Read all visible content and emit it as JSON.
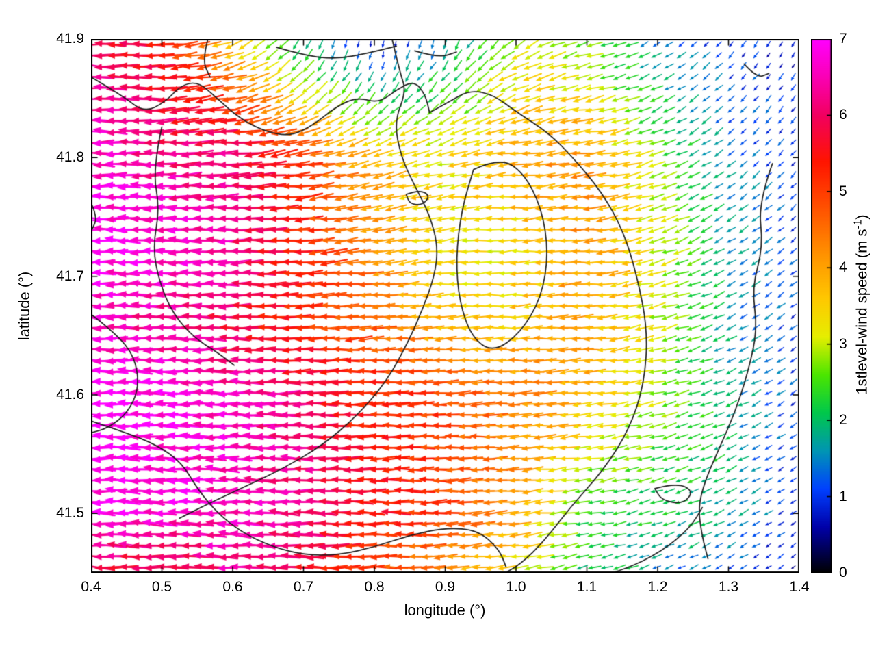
{
  "chart_data": {
    "type": "quiver",
    "title": "",
    "xlabel": "longitude (°)",
    "ylabel": "latitude (°)",
    "xlim": [
      0.4,
      1.4
    ],
    "ylim": [
      41.45,
      41.9
    ],
    "xticks": [
      0.4,
      0.5,
      0.6,
      0.7,
      0.8,
      0.9,
      1.0,
      1.1,
      1.2,
      1.3,
      1.4
    ],
    "xtick_labels": [
      "0.4",
      "0.5",
      "0.6",
      "0.7",
      "0.8",
      "0.9",
      "1.0",
      "1.1",
      "1.2",
      "1.3",
      "1.4"
    ],
    "yticks": [
      41.5,
      41.6,
      41.7,
      41.8,
      41.9
    ],
    "ytick_labels": [
      "41.5",
      "41.6",
      "41.7",
      "41.8",
      "41.9"
    ],
    "grid_on": false,
    "colorbar": {
      "label_main": "1stlevel-wind speed (m s",
      "label_sup": "-1",
      "label_close": ")",
      "min": 0,
      "max": 7,
      "ticks": [
        0,
        1,
        2,
        3,
        4,
        5,
        6,
        7
      ],
      "tick_labels": [
        "0",
        "1",
        "2",
        "3",
        "4",
        "5",
        "6",
        "7"
      ],
      "color_stops": [
        [
          0.0,
          "#000000"
        ],
        [
          0.6,
          "#0000a8"
        ],
        [
          1.1,
          "#0040ff"
        ],
        [
          1.6,
          "#0095b4"
        ],
        [
          2.1,
          "#00c84b"
        ],
        [
          2.6,
          "#4ce600"
        ],
        [
          3.1,
          "#e6ee00"
        ],
        [
          3.6,
          "#ffc800"
        ],
        [
          4.2,
          "#ff9000"
        ],
        [
          4.8,
          "#ff5000"
        ],
        [
          5.4,
          "#ff1400"
        ],
        [
          6.0,
          "#f2005f"
        ],
        [
          6.5,
          "#fa00b4"
        ],
        [
          7.0,
          "#ff00ff"
        ]
      ]
    },
    "wind_grid": {
      "lon": [
        0.4,
        0.5,
        0.6,
        0.7,
        0.8,
        0.9,
        1.0,
        1.1,
        1.2,
        1.3,
        1.4
      ],
      "lat": [
        41.9,
        41.8,
        41.72,
        41.66,
        41.6,
        41.5,
        41.44
      ],
      "speed_ms": [
        [
          6.0,
          5.6,
          3.5,
          1.8,
          0.7,
          1.5,
          3.0,
          2.6,
          1.4,
          1.0,
          0.8
        ],
        [
          6.8,
          6.2,
          6.3,
          5.0,
          3.8,
          3.3,
          3.9,
          4.2,
          2.8,
          1.5,
          1.0
        ],
        [
          7.0,
          6.8,
          6.4,
          5.4,
          4.3,
          3.2,
          3.3,
          4.1,
          3.2,
          1.8,
          1.1
        ],
        [
          6.6,
          6.3,
          5.9,
          5.2,
          4.7,
          3.7,
          3.6,
          4.0,
          3.0,
          1.7,
          1.0
        ],
        [
          7.0,
          6.9,
          6.6,
          6.1,
          5.3,
          5.0,
          4.4,
          3.9,
          2.9,
          1.9,
          1.0
        ],
        [
          6.9,
          6.8,
          6.6,
          6.3,
          5.6,
          5.0,
          4.1,
          2.3,
          2.1,
          1.9,
          0.8
        ],
        [
          5.6,
          5.4,
          6.2,
          5.6,
          4.7,
          4.1,
          3.1,
          2.1,
          1.5,
          1.0,
          0.6
        ]
      ],
      "direction_deg": [
        [
          178,
          182,
          200,
          240,
          265,
          250,
          215,
          195,
          210,
          230,
          240
        ],
        [
          180,
          181,
          183,
          188,
          195,
          192,
          188,
          186,
          200,
          215,
          230
        ],
        [
          179,
          180,
          181,
          184,
          188,
          186,
          182,
          183,
          195,
          210,
          222
        ],
        [
          180,
          180,
          180,
          182,
          184,
          183,
          182,
          184,
          192,
          206,
          218
        ],
        [
          180,
          179,
          179,
          180,
          181,
          181,
          183,
          186,
          192,
          203,
          214
        ],
        [
          179,
          179,
          178,
          179,
          180,
          182,
          186,
          190,
          196,
          206,
          215
        ],
        [
          178,
          178,
          177,
          179,
          182,
          185,
          190,
          196,
          202,
          210,
          216
        ]
      ]
    },
    "arrow_grid": {
      "cols": 57,
      "rows": 49
    },
    "contours_lonlat": [
      [
        [
          0.4,
          41.868
        ],
        [
          0.445,
          41.852
        ],
        [
          0.475,
          41.838
        ],
        [
          0.505,
          41.847
        ],
        [
          0.527,
          41.861
        ],
        [
          0.551,
          41.864
        ],
        [
          0.576,
          41.851
        ],
        [
          0.61,
          41.833
        ],
        [
          0.646,
          41.822
        ],
        [
          0.682,
          41.818
        ],
        [
          0.715,
          41.828
        ],
        [
          0.746,
          41.843
        ],
        [
          0.776,
          41.851
        ],
        [
          0.806,
          41.846
        ],
        [
          0.831,
          41.857
        ],
        [
          0.856,
          41.865
        ],
        [
          0.872,
          41.853
        ],
        [
          0.878,
          41.838
        ]
      ],
      [
        [
          0.878,
          41.838
        ],
        [
          0.905,
          41.847
        ],
        [
          0.935,
          41.857
        ],
        [
          0.968,
          41.853
        ],
        [
          1.002,
          41.838
        ],
        [
          1.046,
          41.821
        ],
        [
          1.082,
          41.799
        ],
        [
          1.121,
          41.771
        ],
        [
          1.151,
          41.739
        ],
        [
          1.171,
          41.7
        ],
        [
          1.186,
          41.654
        ],
        [
          1.181,
          41.609
        ],
        [
          1.16,
          41.571
        ],
        [
          1.124,
          41.537
        ],
        [
          1.079,
          41.507
        ],
        [
          1.04,
          41.477
        ],
        [
          1.006,
          41.457
        ],
        [
          0.976,
          41.447
        ]
      ],
      [
        [
          0.825,
          41.9
        ],
        [
          0.836,
          41.872
        ],
        [
          0.845,
          41.856
        ],
        [
          0.828,
          41.83
        ],
        [
          0.838,
          41.8
        ],
        [
          0.858,
          41.775
        ],
        [
          0.878,
          41.752
        ],
        [
          0.89,
          41.725
        ],
        [
          0.885,
          41.7
        ],
        [
          0.868,
          41.672
        ],
        [
          0.848,
          41.645
        ],
        [
          0.818,
          41.612
        ],
        [
          0.775,
          41.582
        ],
        [
          0.728,
          41.558
        ],
        [
          0.672,
          41.538
        ],
        [
          0.615,
          41.522
        ],
        [
          0.565,
          41.508
        ],
        [
          0.525,
          41.496
        ]
      ],
      [
        [
          0.94,
          41.79
        ],
        [
          0.976,
          41.8
        ],
        [
          1.01,
          41.788
        ],
        [
          1.036,
          41.758
        ],
        [
          1.046,
          41.72
        ],
        [
          1.036,
          41.682
        ],
        [
          1.006,
          41.652
        ],
        [
          0.968,
          41.636
        ],
        [
          0.938,
          41.648
        ],
        [
          0.92,
          41.678
        ],
        [
          0.915,
          41.715
        ],
        [
          0.923,
          41.756
        ],
        [
          0.94,
          41.79
        ]
      ],
      [
        [
          0.5,
          41.826
        ],
        [
          0.487,
          41.79
        ],
        [
          0.497,
          41.757
        ],
        [
          0.487,
          41.724
        ],
        [
          0.497,
          41.694
        ],
        [
          0.516,
          41.668
        ],
        [
          0.546,
          41.648
        ],
        [
          0.578,
          41.636
        ],
        [
          0.602,
          41.625
        ]
      ],
      [
        [
          0.4,
          41.668
        ],
        [
          0.435,
          41.652
        ],
        [
          0.462,
          41.632
        ],
        [
          0.468,
          41.606
        ],
        [
          0.452,
          41.585
        ],
        [
          0.424,
          41.572
        ],
        [
          0.4,
          41.568
        ]
      ],
      [
        [
          0.4,
          41.578
        ],
        [
          0.45,
          41.568
        ],
        [
          0.492,
          41.558
        ],
        [
          0.528,
          41.543
        ],
        [
          0.551,
          41.52
        ],
        [
          0.579,
          41.5
        ],
        [
          0.613,
          41.484
        ],
        [
          0.656,
          41.472
        ],
        [
          0.701,
          41.465
        ],
        [
          0.751,
          41.465
        ],
        [
          0.801,
          41.472
        ],
        [
          0.851,
          41.482
        ],
        [
          0.901,
          41.488
        ],
        [
          0.946,
          41.486
        ],
        [
          0.976,
          41.47
        ],
        [
          0.986,
          41.455
        ]
      ],
      [
        [
          0.976,
          41.447
        ],
        [
          1.031,
          41.443
        ],
        [
          1.091,
          41.443
        ],
        [
          1.151,
          41.452
        ],
        [
          1.206,
          41.468
        ],
        [
          1.246,
          41.488
        ],
        [
          1.263,
          41.505
        ]
      ],
      [
        [
          1.362,
          41.795
        ],
        [
          1.342,
          41.762
        ],
        [
          1.349,
          41.725
        ],
        [
          1.333,
          41.69
        ],
        [
          1.341,
          41.655
        ],
        [
          1.327,
          41.618
        ],
        [
          1.309,
          41.585
        ],
        [
          1.287,
          41.555
        ],
        [
          1.267,
          41.528
        ],
        [
          1.257,
          41.505
        ],
        [
          1.263,
          41.48
        ],
        [
          1.271,
          41.462
        ]
      ],
      [
        [
          0.565,
          41.9
        ],
        [
          0.557,
          41.882
        ],
        [
          0.568,
          41.868
        ]
      ],
      [
        [
          0.662,
          41.893
        ],
        [
          0.702,
          41.886
        ],
        [
          0.746,
          41.883
        ],
        [
          0.791,
          41.888
        ],
        [
          0.831,
          41.894
        ]
      ],
      [
        [
          0.857,
          41.89
        ],
        [
          0.891,
          41.884
        ],
        [
          0.916,
          41.889
        ]
      ],
      [
        [
          0.845,
          41.769
        ],
        [
          0.863,
          41.773
        ],
        [
          0.879,
          41.768
        ],
        [
          0.868,
          41.76
        ],
        [
          0.85,
          41.761
        ],
        [
          0.845,
          41.769
        ]
      ],
      [
        [
          1.322,
          41.879
        ],
        [
          1.34,
          41.867
        ],
        [
          1.357,
          41.871
        ]
      ],
      [
        [
          1.196,
          41.521
        ],
        [
          1.226,
          41.526
        ],
        [
          1.251,
          41.519
        ],
        [
          1.236,
          41.508
        ],
        [
          1.206,
          41.511
        ],
        [
          1.196,
          41.521
        ]
      ],
      [
        [
          0.4,
          41.762
        ],
        [
          0.409,
          41.75
        ],
        [
          0.402,
          41.74
        ]
      ]
    ],
    "style_colors": {
      "border": "#000000",
      "contour": "#1c1c1c",
      "background": "#ffffff"
    }
  }
}
